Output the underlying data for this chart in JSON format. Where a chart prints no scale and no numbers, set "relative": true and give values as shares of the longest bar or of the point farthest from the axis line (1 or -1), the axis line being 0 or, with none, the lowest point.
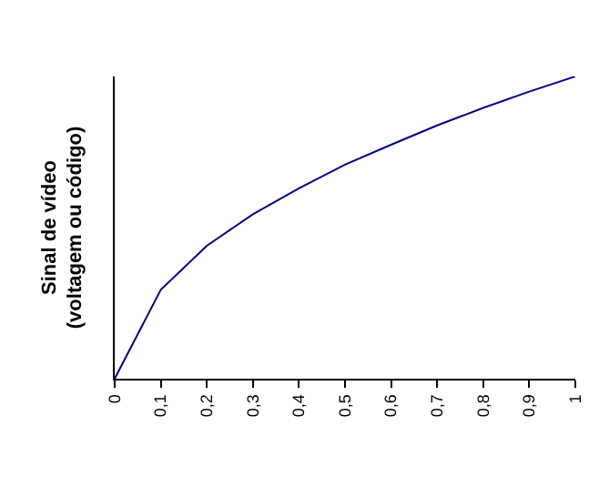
{
  "chart_data": {
    "type": "line",
    "ylabel": "Sinal de vídeo\n(voltagem ou código)",
    "relative": true,
    "x": [
      0,
      0.1,
      0.2,
      0.3,
      0.4,
      0.5,
      0.6,
      0.7,
      0.8,
      0.9,
      1
    ],
    "series": [
      {
        "color": "#000080",
        "values": [
          0,
          0.294,
          0.44,
          0.544,
          0.63,
          0.708,
          0.774,
          0.838,
          0.896,
          0.95,
          1
        ]
      }
    ],
    "xlim": [
      0,
      1
    ],
    "xticks": [
      0,
      {
        "value": 0.1,
        "label": "0,1"
      },
      {
        "value": 0.2,
        "label": "0,2"
      },
      {
        "value": 0.3,
        "label": "0,3"
      },
      {
        "value": 0.4,
        "label": "0,4"
      },
      {
        "value": 0.5,
        "label": "0,5"
      },
      {
        "value": 0.6,
        "label": "0,6"
      },
      {
        "value": 0.7,
        "label": "0,7"
      },
      {
        "value": 0.8,
        "label": "0,8"
      },
      {
        "value": 0.9,
        "label": "0,9"
      },
      1
    ],
    "line_style": "solid"
  }
}
